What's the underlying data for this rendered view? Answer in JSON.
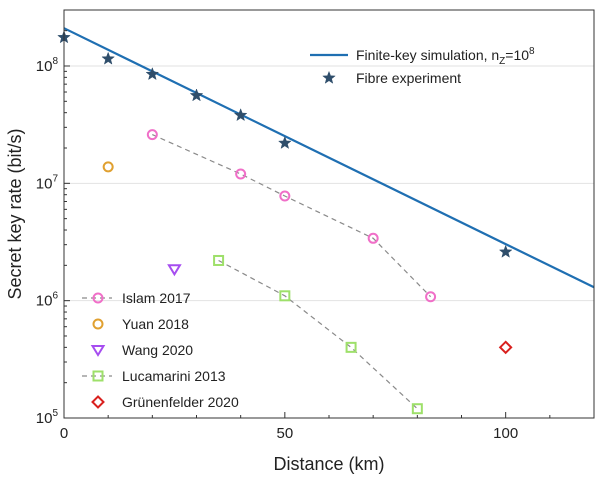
{
  "chart_data": {
    "type": "scatter",
    "xlabel": "Distance (km)",
    "ylabel": "Secret key rate (bit/s)",
    "xlim": [
      0,
      120
    ],
    "ylim": [
      100000,
      300000000
    ],
    "yscale": "log",
    "x_ticks": [
      0,
      50,
      100
    ],
    "y_ticks": [
      {
        "value": 100000,
        "base": "10",
        "exp": "5"
      },
      {
        "value": 1000000,
        "base": "10",
        "exp": "6"
      },
      {
        "value": 10000000,
        "base": "10",
        "exp": "7"
      },
      {
        "value": 100000000,
        "base": "10",
        "exp": "8"
      }
    ],
    "grid": "horizontal",
    "series": [
      {
        "name": "Finite-key simulation, n",
        "name_sub": "Z",
        "name_suffix": "=10",
        "name_sup": "8",
        "marker": "line",
        "color": "#1f6fb2",
        "x": [
          0,
          120
        ],
        "y": [
          210000000,
          1300000
        ]
      },
      {
        "name": "Fibre experiment",
        "marker": "star",
        "color": "#2f4e6b",
        "x": [
          0,
          10,
          20,
          30,
          40,
          50,
          100
        ],
        "y": [
          175000000,
          115000000,
          85000000,
          56000000,
          38000000,
          22000000,
          2600000
        ]
      },
      {
        "name": "Islam 2017",
        "marker": "circle",
        "connect": true,
        "color": "#f06fc8",
        "x": [
          20,
          40,
          50,
          70,
          83
        ],
        "y": [
          26000000,
          12000000,
          7800000,
          3400000,
          1080000
        ]
      },
      {
        "name": "Yuan 2018",
        "marker": "circle",
        "color": "#e0a030",
        "x": [
          10
        ],
        "y": [
          13800000
        ]
      },
      {
        "name": "Wang 2020",
        "marker": "triangle-down",
        "color": "#a64df0",
        "x": [
          25
        ],
        "y": [
          1850000
        ]
      },
      {
        "name": "Lucamarini 2013",
        "marker": "square",
        "connect": true,
        "color": "#9ee06a",
        "x": [
          35,
          50,
          65,
          80
        ],
        "y": [
          2200000,
          1100000,
          400000,
          120000
        ]
      },
      {
        "name": "Grünenfelder 2020",
        "marker": "diamond",
        "color": "#d9201e",
        "x": [
          100
        ],
        "y": [
          400000
        ]
      }
    ]
  }
}
